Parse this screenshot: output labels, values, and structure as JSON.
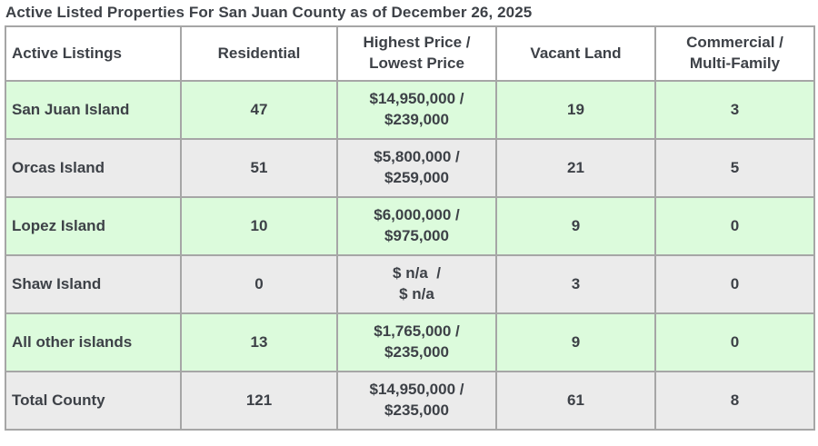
{
  "title": "Active Listed Properties For San Juan County as of December 26, 2025",
  "chart_data": {
    "type": "table",
    "title": "Active Listed Properties For San Juan County as of December 26, 2025",
    "columns": [
      "Active Listings",
      "Residential",
      "Highest Price /\nLowest Price",
      "Vacant Land",
      "Commercial /\nMulti-Family"
    ],
    "rows": [
      {
        "active_listings": "San Juan Island",
        "residential": "47",
        "price": "$14,950,000 /\n$239,000",
        "vacant_land": "19",
        "commercial_multi_family": "3"
      },
      {
        "active_listings": "Orcas Island",
        "residential": "51",
        "price": "$5,800,000 /\n$259,000",
        "vacant_land": "21",
        "commercial_multi_family": "5"
      },
      {
        "active_listings": "Lopez Island",
        "residential": "10",
        "price": "$6,000,000 /\n$975,000",
        "vacant_land": "9",
        "commercial_multi_family": "0"
      },
      {
        "active_listings": "Shaw Island",
        "residential": "0",
        "price": "$ n/a  /\n$ n/a",
        "vacant_land": "3",
        "commercial_multi_family": "0"
      },
      {
        "active_listings": "All other islands",
        "residential": "13",
        "price": "$1,765,000 /\n$235,000",
        "vacant_land": "9",
        "commercial_multi_family": "0"
      },
      {
        "active_listings": "Total County",
        "residential": "121",
        "price": "$14,950,000 /\n$235,000",
        "vacant_land": "61",
        "commercial_multi_family": "8"
      }
    ]
  },
  "colors": {
    "row_green": "#dcfbdc",
    "row_gray": "#ebebeb",
    "border": "#a6a6a6",
    "text": "#3d4147",
    "header_bg": "#ffffff",
    "page_bg": "#ffffff"
  }
}
